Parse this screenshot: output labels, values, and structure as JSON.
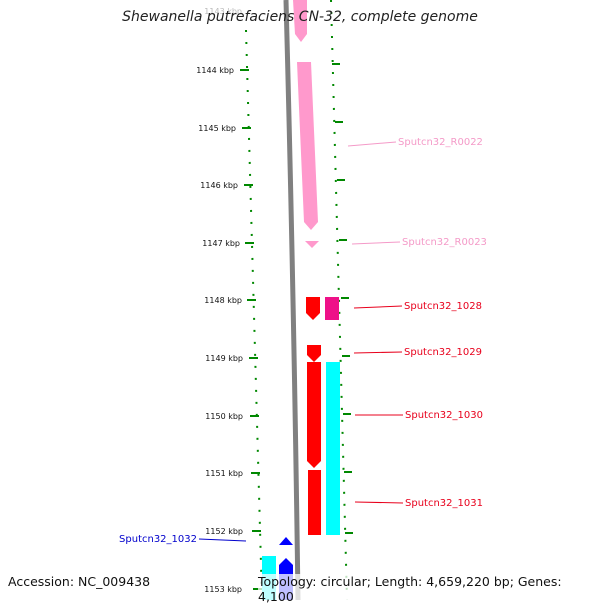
{
  "title": "Shewanella putrefaciens CN-32, complete genome",
  "footer": {
    "accession": "Accession: NC_009438",
    "stats": "Topology: circular; Length: 4,659,220 bp; Genes: 4,100"
  },
  "ruler": {
    "ticks": [
      "1143 kbp",
      "1144 kbp",
      "1145 kbp",
      "1146 kbp",
      "1147 kbp",
      "1148 kbp",
      "1149 kbp",
      "1150 kbp",
      "1151 kbp",
      "1152 kbp",
      "1153 kbp"
    ]
  },
  "genes": [
    {
      "label": "Sputcn32_R0022",
      "color": "#f49ac8"
    },
    {
      "label": "Sputcn32_R0023",
      "color": "#f49ac8"
    },
    {
      "label": "Sputcn32_1028",
      "color": "#e8001c"
    },
    {
      "label": "Sputcn32_1029",
      "color": "#e8001c"
    },
    {
      "label": "Sputcn32_1030",
      "color": "#e8001c"
    },
    {
      "label": "Sputcn32_1031",
      "color": "#e8001c"
    },
    {
      "label": "Sputcn32_1032",
      "color": "#0000cc"
    }
  ],
  "colors": {
    "trna": "#ff99cc",
    "cds": "#ff0000",
    "magenta": "#ee1188",
    "cyan": "#00ffff",
    "blue": "#0000ff",
    "backbone": "#808080",
    "tick": "#008800"
  }
}
